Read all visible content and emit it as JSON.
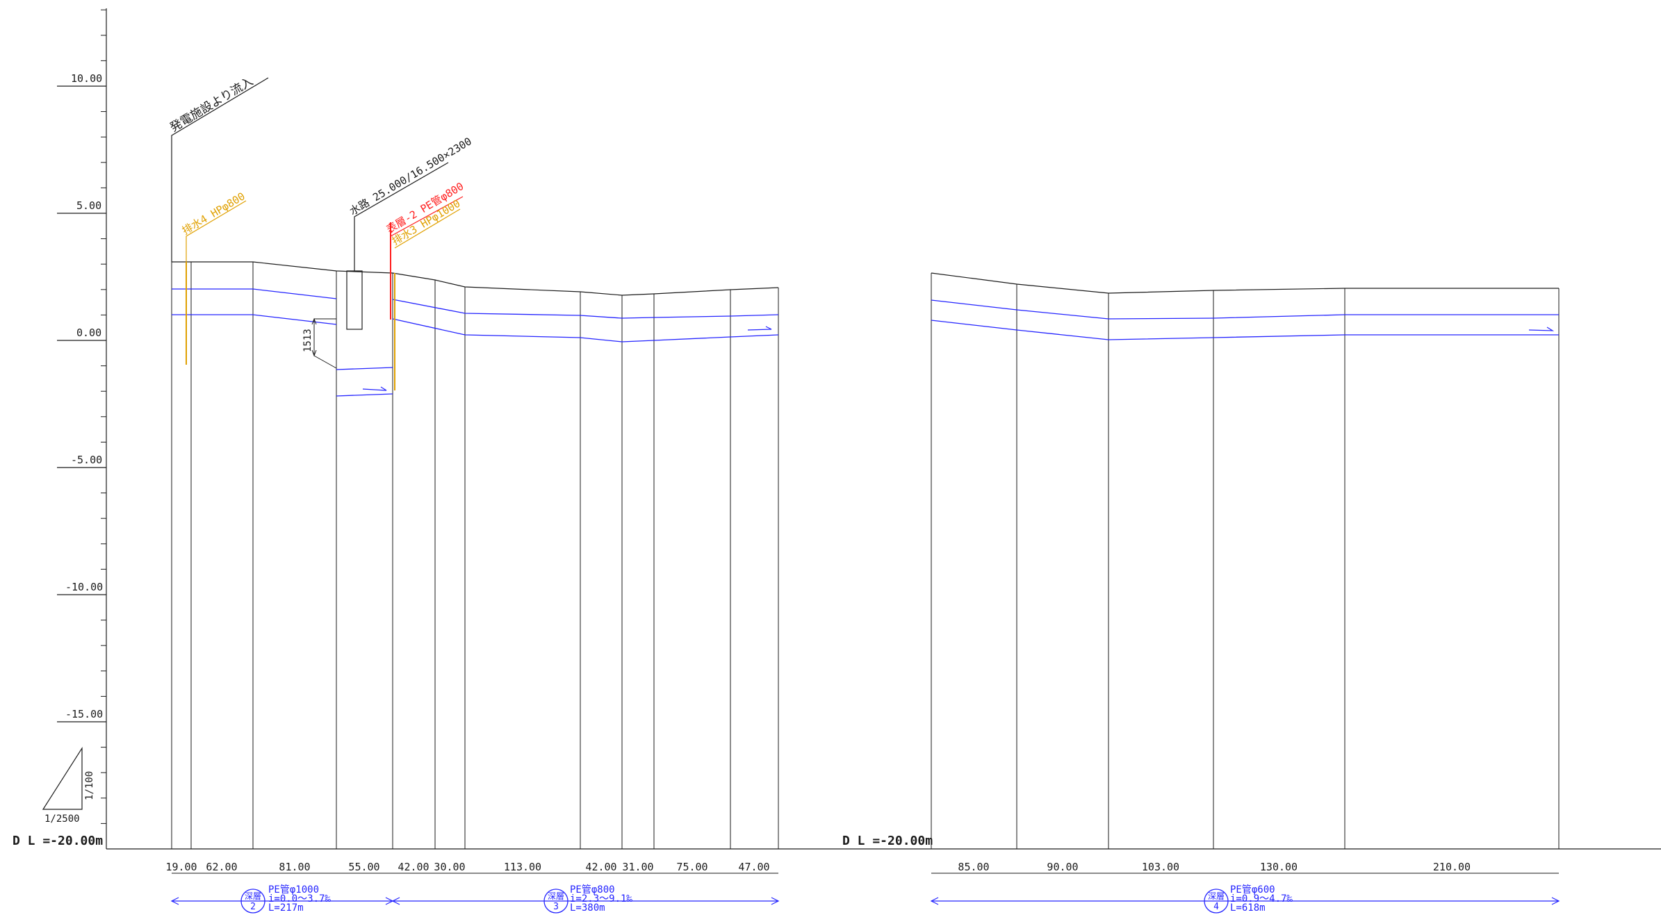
{
  "scale": {
    "labels": [
      "10.00",
      "5.00",
      "0.00",
      "-5.00",
      "-10.00",
      "-15.00"
    ],
    "vertical_ratio": "1/100",
    "horizontal_ratio": "1/2500"
  },
  "datum": {
    "left": "D L =-20.00m",
    "right": "D L =-20.00m"
  },
  "annotations": {
    "inflow": "発電施設より流入",
    "drain4": "排水4 HPφ800",
    "waterway": "水路 25.000/16.500×2300",
    "surface2": "表層-2 PE管φ800",
    "drain3": "排水3 HPφ1000",
    "drop": "1513"
  },
  "segments_left": [
    "19.00",
    "62.00",
    "81.00",
    "55.00",
    "42.00",
    "30.00",
    "113.00",
    "42.00",
    "31.00",
    "75.00",
    "47.00"
  ],
  "segments_right": [
    "85.00",
    "90.00",
    "103.00",
    "130.00",
    "210.00"
  ],
  "pipes": [
    {
      "mark_top": "深層",
      "mark_num": "2",
      "line1": "PE管φ1000",
      "line2": "i=0.0〜3.7‰",
      "line3": "L=217m"
    },
    {
      "mark_top": "深層",
      "mark_num": "3",
      "line1": "PE管φ800",
      "line2": "i=2.3〜9.1‰",
      "line3": "L=380m"
    },
    {
      "mark_top": "深層",
      "mark_num": "4",
      "line1": "PE管φ600",
      "line2": "i=0.9〜4.7‰",
      "line3": "L=618m"
    }
  ],
  "colors": {
    "ink": "#1a1a1a",
    "pipe": "#2323ff",
    "drain": "#e0a000",
    "surface": "#ff1e1e"
  }
}
